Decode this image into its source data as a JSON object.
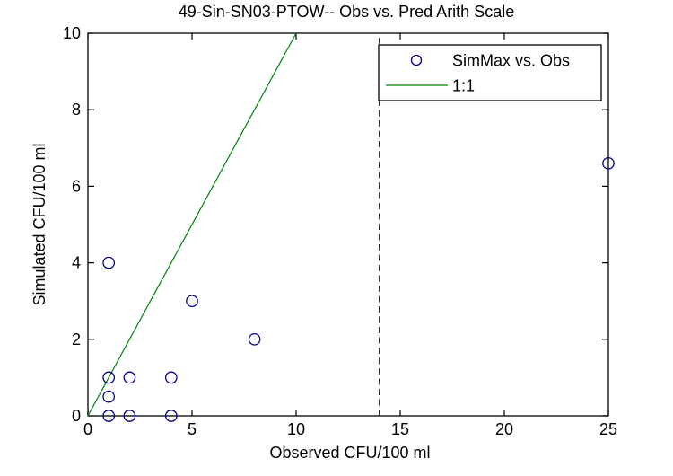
{
  "figure": {
    "background": "#FFFFFF"
  },
  "chart_data": {
    "type": "scatter",
    "title": "49-Sin-SN03-PTOW-- Obs vs. Pred Arith Scale",
    "xlabel": "Observed CFU/100 ml",
    "ylabel": "Simulated CFU/100 ml",
    "xlim": [
      0,
      25
    ],
    "ylim": [
      0,
      10
    ],
    "xticks": [
      0,
      5,
      10,
      15,
      20,
      25
    ],
    "yticks": [
      0,
      2,
      4,
      6,
      8,
      10
    ],
    "grid": false,
    "axis_color": "#000000",
    "background": "#FFFFFF",
    "series": [
      {
        "name": "SimMax vs. Obs",
        "type": "scatter",
        "marker": "circle",
        "color": "#00008B",
        "points": [
          [
            1,
            4
          ],
          [
            5,
            3
          ],
          [
            8,
            2
          ],
          [
            1,
            1
          ],
          [
            2,
            1
          ],
          [
            4,
            1
          ],
          [
            1,
            0.5
          ],
          [
            1,
            0
          ],
          [
            2,
            0
          ],
          [
            4,
            0
          ],
          [
            25,
            6.6
          ]
        ]
      },
      {
        "name": "1:1",
        "type": "line",
        "color": "#008000",
        "points": [
          [
            0,
            0
          ],
          [
            10,
            10
          ]
        ]
      }
    ],
    "annotations": [
      {
        "type": "vline",
        "x": 14,
        "style": "dashed",
        "color": "#000000"
      }
    ],
    "legend": {
      "position": "top-right",
      "entries": [
        "SimMax vs. Obs",
        "1:1"
      ]
    }
  }
}
